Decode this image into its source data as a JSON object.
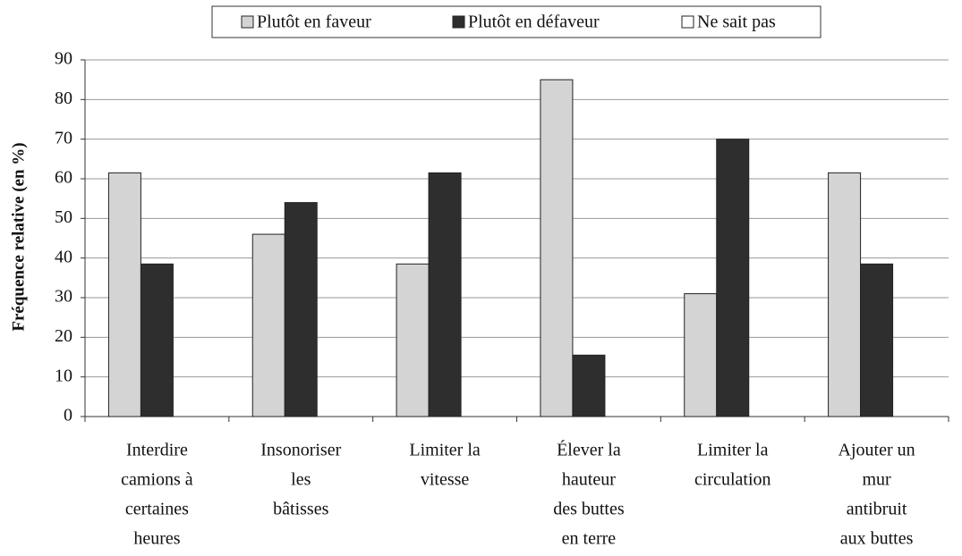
{
  "chart_data": {
    "type": "bar",
    "y_label": "Fréquence relative (en %)",
    "categories": [
      [
        "Interdire",
        "camions à",
        "certaines",
        "heures"
      ],
      [
        "Insonoriser",
        "les",
        "bâtisses"
      ],
      [
        "Limiter la",
        "vitesse"
      ],
      [
        "Élever la",
        "hauteur",
        "des buttes",
        "en terre"
      ],
      [
        "Limiter la",
        "circulation"
      ],
      [
        "Ajouter un",
        "mur",
        "antibruit",
        "aux buttes"
      ]
    ],
    "series": [
      {
        "name": "Plutôt en faveur",
        "color": "#d4d4d4",
        "values": [
          61.5,
          46,
          38.5,
          85,
          31,
          61.5
        ]
      },
      {
        "name": "Plutôt en défaveur",
        "color": "#2e2e2e",
        "values": [
          38.5,
          54,
          61.5,
          15.5,
          70,
          38.5
        ]
      },
      {
        "name": "Ne sait pas",
        "color": "#ffffff",
        "values": [
          0,
          0,
          0,
          0,
          0,
          0
        ]
      }
    ],
    "ylim": [
      0,
      90
    ],
    "yticks": [
      0,
      10,
      20,
      30,
      40,
      50,
      60,
      70,
      80,
      90
    ],
    "grid": true,
    "legend": "top"
  }
}
